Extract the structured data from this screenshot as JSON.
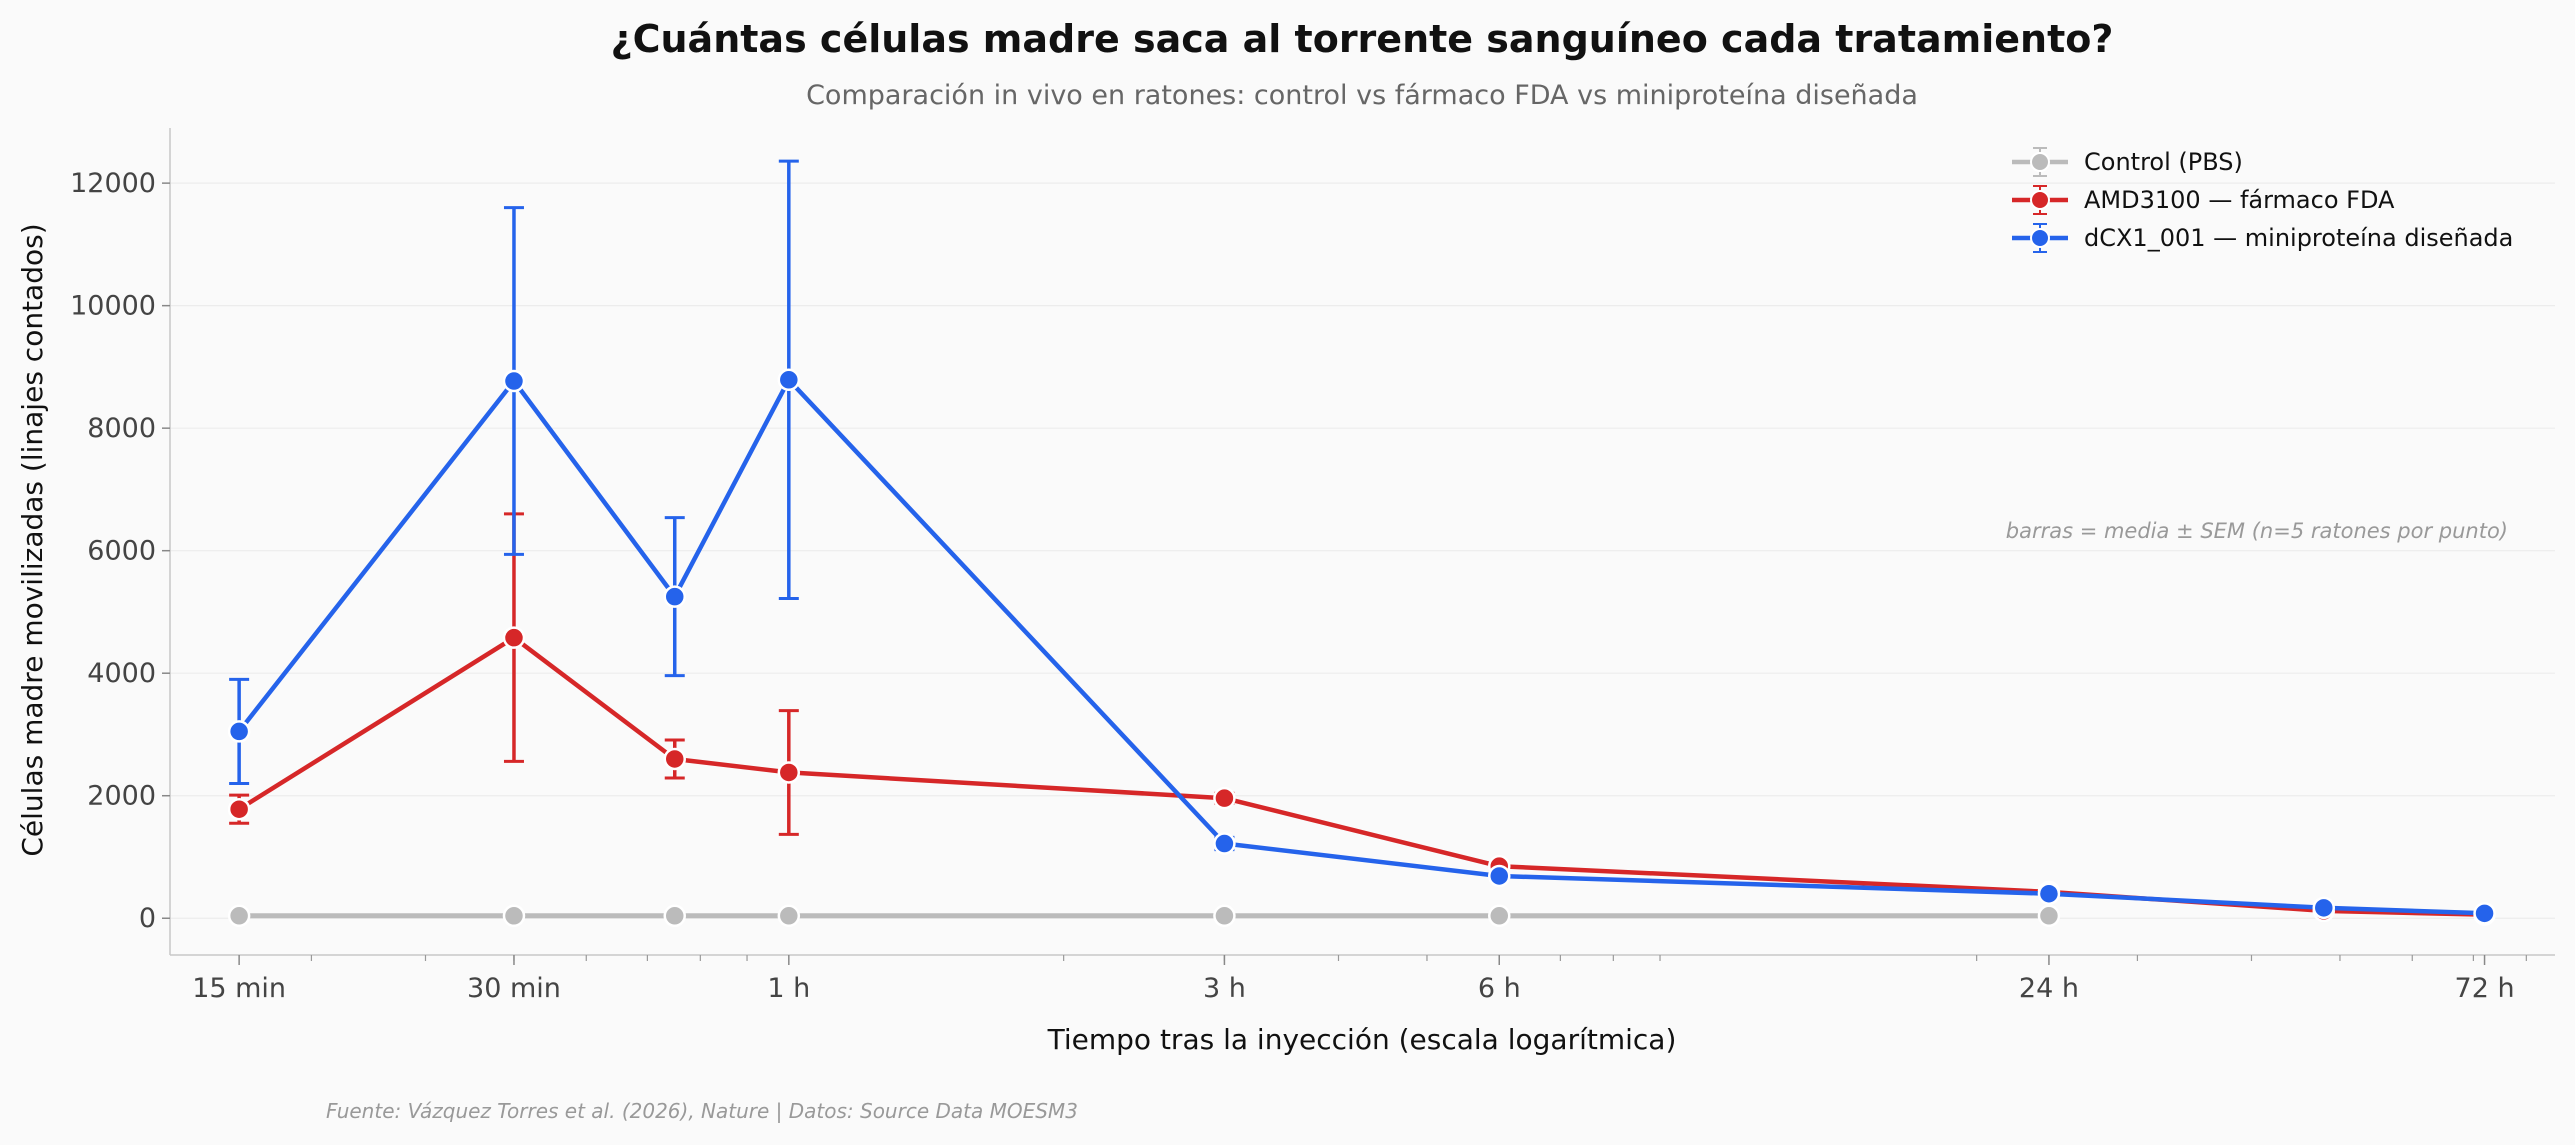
{
  "chart_data": {
    "type": "line",
    "title": "¿Cuántas células madre saca al torrente sanguíneo cada tratamiento?",
    "subtitle": "Comparación in vivo en ratones: control vs fármaco FDA vs miniproteína diseñada",
    "xlabel": "Tiempo tras la inyección (escala logarítmica)",
    "ylabel": "Células madre movilizadas (linajes contados)",
    "x_scale": "log",
    "x_unit": "hours",
    "xlim": [
      0.21,
      86
    ],
    "ylim": [
      -600,
      12900
    ],
    "x_ticks": [
      {
        "value": 0.25,
        "label": "15 min"
      },
      {
        "value": 0.5,
        "label": "30 min"
      },
      {
        "value": 1,
        "label": "1 h"
      },
      {
        "value": 3,
        "label": "3 h"
      },
      {
        "value": 6,
        "label": "6 h"
      },
      {
        "value": 24,
        "label": "24 h"
      },
      {
        "value": 72,
        "label": "72 h"
      }
    ],
    "y_ticks": [
      0,
      2000,
      4000,
      6000,
      8000,
      10000,
      12000
    ],
    "grid": "horizontal",
    "legend_position": "top-right",
    "series": [
      {
        "name": "Control (PBS)",
        "color": "#bbbbbb",
        "x": [
          0.25,
          0.5,
          0.75,
          1,
          3,
          6,
          24
        ],
        "y": [
          40,
          40,
          40,
          40,
          40,
          40,
          40
        ],
        "err": [
          0,
          0,
          0,
          0,
          0,
          0,
          0
        ]
      },
      {
        "name": "AMD3100 — fármaco FDA",
        "color": "#d62728",
        "x": [
          0.25,
          0.5,
          0.75,
          1,
          3,
          6,
          24,
          48,
          72
        ],
        "y": [
          1780,
          4580,
          2600,
          2380,
          1960,
          850,
          430,
          120,
          60
        ],
        "err": [
          230,
          2020,
          310,
          1010,
          80,
          50,
          30,
          20,
          10
        ]
      },
      {
        "name": "dCX1_001 — miniproteína diseñada",
        "color": "#2563eb",
        "x": [
          0.25,
          0.5,
          0.75,
          1,
          3,
          6,
          24,
          48,
          72
        ],
        "y": [
          3050,
          8770,
          5250,
          8790,
          1220,
          690,
          400,
          170,
          80
        ],
        "err": [
          850,
          2830,
          1290,
          3570,
          100,
          40,
          30,
          20,
          10
        ]
      }
    ],
    "annotation": "barras = media ± SEM (n=5 ratones por punto)",
    "source": "Fuente: Vázquez Torres et al. (2026), Nature | Datos: Source Data MOESM3"
  }
}
